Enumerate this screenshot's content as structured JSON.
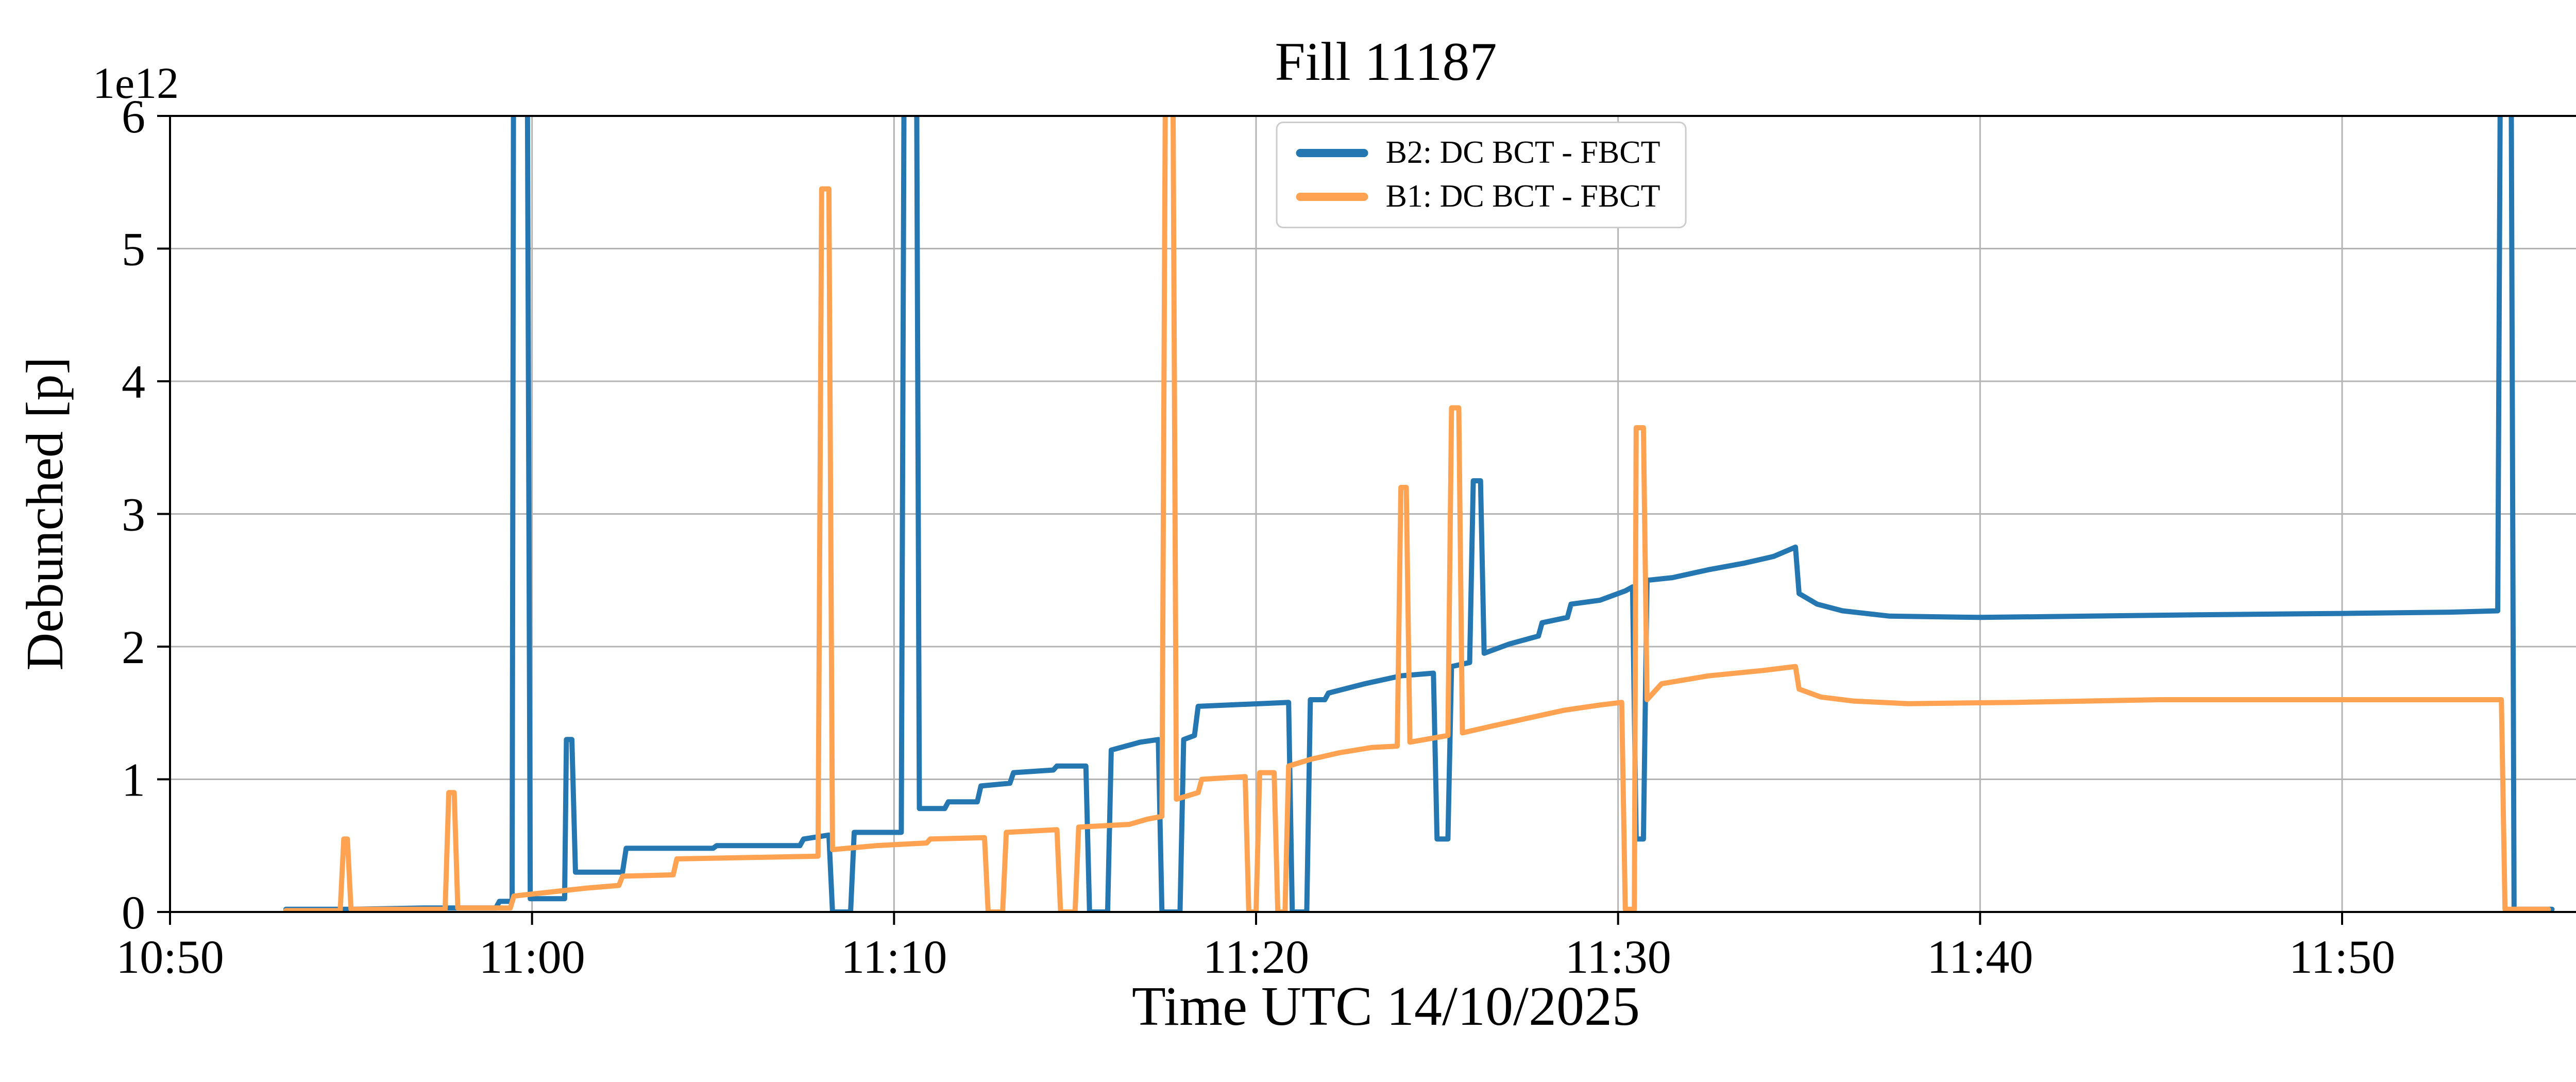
{
  "chart_data": {
    "type": "line",
    "title": "Fill 11187",
    "xlabel": "Time UTC 14/10/2025",
    "ylabel": "Debunched [p]",
    "y_offset_label": "1e12",
    "grid": true,
    "legend_position": "upper center inside",
    "x_axis": {
      "unit": "minutes after 10:50 UTC",
      "min": 0,
      "max": 67.2,
      "tick_positions": [
        0,
        10,
        20,
        30,
        40,
        50,
        60
      ],
      "tick_labels": [
        "10:50",
        "11:00",
        "11:10",
        "11:20",
        "11:30",
        "11:40",
        "11:50"
      ]
    },
    "y_axis": {
      "unit": "1e12 p",
      "min": 0,
      "max": 6,
      "ticks": [
        0,
        1,
        2,
        3,
        4,
        5,
        6
      ],
      "tick_labels": [
        "0",
        "1",
        "2",
        "3",
        "4",
        "5",
        "6"
      ]
    },
    "series": [
      {
        "name": "B2: DC BCT - FBCT",
        "color": "#2577b2",
        "points": [
          [
            3.2,
            0.02
          ],
          [
            5,
            0.02
          ],
          [
            7,
            0.03
          ],
          [
            9,
            0.03
          ],
          [
            9.1,
            0.08
          ],
          [
            9.45,
            0.08
          ],
          [
            9.5,
            8
          ],
          [
            9.85,
            8
          ],
          [
            9.95,
            0.1
          ],
          [
            10.9,
            0.1
          ],
          [
            10.95,
            1.3
          ],
          [
            11.1,
            1.3
          ],
          [
            11.2,
            0.3
          ],
          [
            12.5,
            0.3
          ],
          [
            12.6,
            0.48
          ],
          [
            15,
            0.48
          ],
          [
            15.1,
            0.5
          ],
          [
            17.4,
            0.5
          ],
          [
            17.5,
            0.55
          ],
          [
            18.2,
            0.58
          ],
          [
            18.3,
            0
          ],
          [
            18.8,
            0
          ],
          [
            18.9,
            0.6
          ],
          [
            20.2,
            0.6
          ],
          [
            20.3,
            8
          ],
          [
            20.6,
            8
          ],
          [
            20.7,
            0.78
          ],
          [
            21.4,
            0.78
          ],
          [
            21.5,
            0.83
          ],
          [
            22.3,
            0.83
          ],
          [
            22.4,
            0.95
          ],
          [
            23.2,
            0.97
          ],
          [
            23.3,
            1.05
          ],
          [
            24.4,
            1.07
          ],
          [
            24.5,
            1.1
          ],
          [
            25.3,
            1.1
          ],
          [
            25.4,
            0
          ],
          [
            25.9,
            0
          ],
          [
            26,
            1.22
          ],
          [
            26.8,
            1.28
          ],
          [
            27.3,
            1.3
          ],
          [
            27.4,
            0
          ],
          [
            27.9,
            0
          ],
          [
            28,
            1.3
          ],
          [
            28.3,
            1.33
          ],
          [
            28.4,
            1.55
          ],
          [
            30.9,
            1.58
          ],
          [
            31,
            0
          ],
          [
            31.4,
            0
          ],
          [
            31.5,
            1.6
          ],
          [
            31.9,
            1.6
          ],
          [
            32,
            1.65
          ],
          [
            33,
            1.72
          ],
          [
            34,
            1.78
          ],
          [
            34.9,
            1.8
          ],
          [
            35,
            0.55
          ],
          [
            35.3,
            0.55
          ],
          [
            35.4,
            1.85
          ],
          [
            35.9,
            1.88
          ],
          [
            36,
            3.25
          ],
          [
            36.2,
            3.25
          ],
          [
            36.3,
            1.95
          ],
          [
            37,
            2.02
          ],
          [
            37.8,
            2.08
          ],
          [
            37.9,
            2.18
          ],
          [
            38.6,
            2.22
          ],
          [
            38.7,
            2.32
          ],
          [
            39.5,
            2.35
          ],
          [
            40.2,
            2.42
          ],
          [
            40.4,
            2.45
          ],
          [
            40.5,
            0.55
          ],
          [
            40.7,
            0.55
          ],
          [
            40.8,
            2.5
          ],
          [
            41.5,
            2.52
          ],
          [
            42.5,
            2.58
          ],
          [
            43.5,
            2.63
          ],
          [
            44.3,
            2.68
          ],
          [
            44.9,
            2.75
          ],
          [
            45,
            2.4
          ],
          [
            45.5,
            2.32
          ],
          [
            46.2,
            2.27
          ],
          [
            47.5,
            2.23
          ],
          [
            50,
            2.22
          ],
          [
            53,
            2.23
          ],
          [
            56,
            2.24
          ],
          [
            60,
            2.25
          ],
          [
            63,
            2.26
          ],
          [
            64.3,
            2.27
          ],
          [
            64.4,
            8
          ],
          [
            64.65,
            8
          ],
          [
            64.75,
            0.02
          ],
          [
            65.8,
            0.02
          ]
        ]
      },
      {
        "name": "B1: DC BCT - FBCT",
        "color": "#ffa352",
        "points": [
          [
            3.2,
            0.01
          ],
          [
            4.7,
            0.01
          ],
          [
            4.8,
            0.55
          ],
          [
            4.9,
            0.55
          ],
          [
            5,
            0.02
          ],
          [
            7.6,
            0.02
          ],
          [
            7.7,
            0.9
          ],
          [
            7.85,
            0.9
          ],
          [
            7.95,
            0.03
          ],
          [
            9.4,
            0.03
          ],
          [
            9.5,
            0.12
          ],
          [
            10.5,
            0.15
          ],
          [
            11.5,
            0.18
          ],
          [
            12.4,
            0.2
          ],
          [
            12.5,
            0.27
          ],
          [
            13.9,
            0.28
          ],
          [
            14,
            0.4
          ],
          [
            17.9,
            0.42
          ],
          [
            18,
            5.45
          ],
          [
            18.2,
            5.45
          ],
          [
            18.3,
            0.47
          ],
          [
            19.5,
            0.5
          ],
          [
            20.9,
            0.52
          ],
          [
            21,
            0.55
          ],
          [
            22.5,
            0.56
          ],
          [
            22.6,
            0
          ],
          [
            23,
            0
          ],
          [
            23.1,
            0.6
          ],
          [
            24.5,
            0.62
          ],
          [
            24.6,
            0
          ],
          [
            25,
            0
          ],
          [
            25.1,
            0.64
          ],
          [
            26.5,
            0.66
          ],
          [
            27,
            0.7
          ],
          [
            27.4,
            0.72
          ],
          [
            27.5,
            6.5
          ],
          [
            27.7,
            6.5
          ],
          [
            27.8,
            0.85
          ],
          [
            28.4,
            0.9
          ],
          [
            28.5,
            1
          ],
          [
            29.7,
            1.02
          ],
          [
            29.8,
            0
          ],
          [
            30,
            0
          ],
          [
            30.1,
            1.05
          ],
          [
            30.5,
            1.05
          ],
          [
            30.6,
            0
          ],
          [
            30.8,
            0
          ],
          [
            30.9,
            1.1
          ],
          [
            31.5,
            1.15
          ],
          [
            32.3,
            1.2
          ],
          [
            33.2,
            1.24
          ],
          [
            33.9,
            1.25
          ],
          [
            34,
            3.2
          ],
          [
            34.15,
            3.2
          ],
          [
            34.25,
            1.28
          ],
          [
            35.3,
            1.33
          ],
          [
            35.4,
            3.8
          ],
          [
            35.6,
            3.8
          ],
          [
            35.7,
            1.35
          ],
          [
            36.5,
            1.4
          ],
          [
            37.5,
            1.46
          ],
          [
            38.5,
            1.52
          ],
          [
            39.5,
            1.56
          ],
          [
            40.1,
            1.58
          ],
          [
            40.2,
            0.02
          ],
          [
            40.45,
            0.02
          ],
          [
            40.5,
            3.65
          ],
          [
            40.7,
            3.65
          ],
          [
            40.8,
            1.6
          ],
          [
            41.2,
            1.72
          ],
          [
            42.5,
            1.78
          ],
          [
            44,
            1.82
          ],
          [
            44.9,
            1.85
          ],
          [
            45,
            1.68
          ],
          [
            45.6,
            1.62
          ],
          [
            46.5,
            1.59
          ],
          [
            48,
            1.57
          ],
          [
            51,
            1.58
          ],
          [
            55,
            1.6
          ],
          [
            60,
            1.6
          ],
          [
            63,
            1.6
          ],
          [
            64.4,
            1.6
          ],
          [
            64.5,
            0.02
          ],
          [
            65.7,
            0.02
          ]
        ]
      }
    ]
  },
  "colors": {
    "background": "#ffffff",
    "grid": "#b4b4b4",
    "spine": "#000000",
    "tick": "#000000",
    "legend_border": "#cccccc"
  }
}
